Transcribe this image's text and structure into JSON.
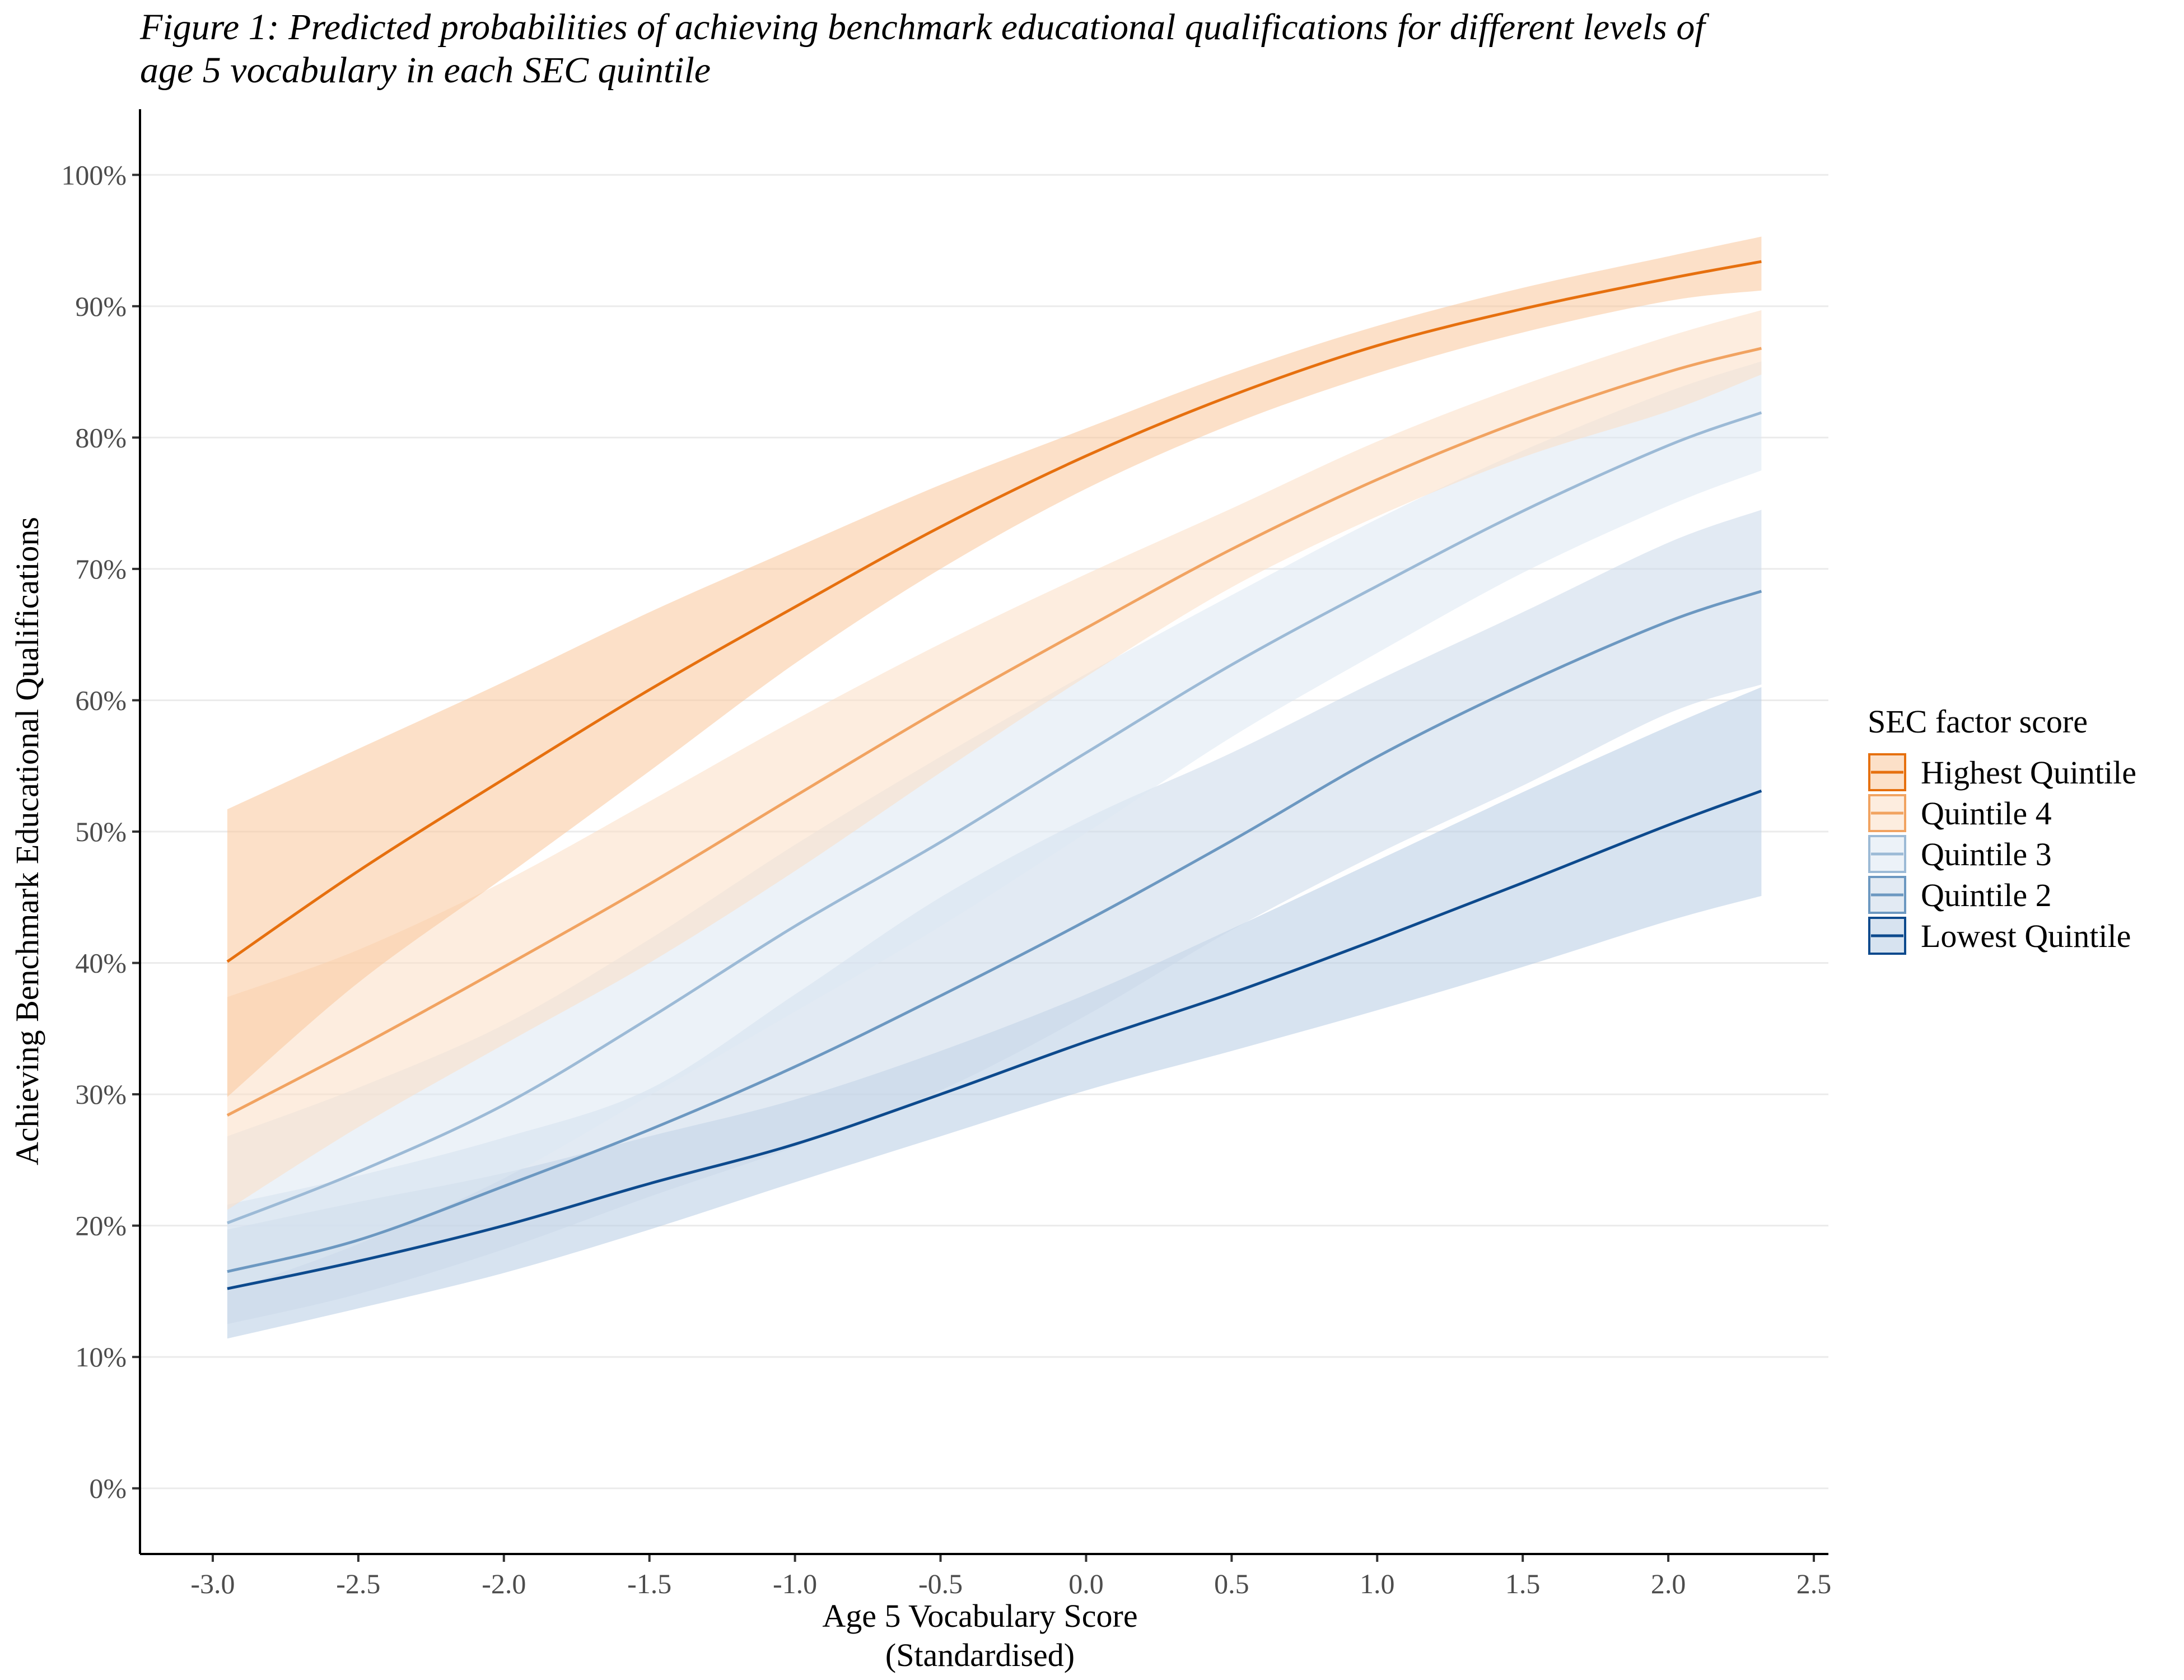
{
  "chart_data": {
    "type": "line",
    "title_line1": "Figure 1: Predicted probabilities of achieving benchmark educational qualifications for different levels of",
    "title_line2": " age 5 vocabulary in each SEC quintile",
    "xlabel_line1": "Age 5 Vocabulary Score",
    "xlabel_line2": "(Standardised)",
    "ylabel": "Achieving Benchmark Educational Qualifications",
    "xlim": [
      -3.25,
      2.55
    ],
    "ylim": [
      -0.05,
      1.05
    ],
    "x_ticks": [
      -3.0,
      -2.5,
      -2.0,
      -1.5,
      -1.0,
      -0.5,
      0.0,
      0.5,
      1.0,
      1.5,
      2.0,
      2.5
    ],
    "x_tick_labels": [
      "-3.0",
      "-2.5",
      "-2.0",
      "-1.5",
      "-1.0",
      "-0.5",
      "0.0",
      "0.5",
      "1.0",
      "1.5",
      "2.0",
      "2.5"
    ],
    "y_ticks": [
      0,
      0.1,
      0.2,
      0.3,
      0.4,
      0.5,
      0.6,
      0.7,
      0.8,
      0.9,
      1.0
    ],
    "y_tick_labels": [
      "0%",
      "10%",
      "20%",
      "30%",
      "40%",
      "50%",
      "60%",
      "70%",
      "80%",
      "90%",
      "100%"
    ],
    "grid": true,
    "legend": {
      "title": "SEC factor score",
      "placement": "right"
    },
    "x": [
      -2.95,
      -2.5,
      -2.0,
      -1.5,
      -1.0,
      -0.5,
      0.0,
      0.5,
      1.0,
      1.5,
      2.0,
      2.32
    ],
    "series": [
      {
        "name": "Highest Quintile",
        "color": "#E6700F",
        "fill": "#F9C79A",
        "values": [
          0.401,
          0.47,
          0.54,
          0.608,
          0.671,
          0.732,
          0.786,
          0.832,
          0.87,
          0.898,
          0.921,
          0.934
        ],
        "lower": [
          0.298,
          0.385,
          0.465,
          0.546,
          0.628,
          0.7,
          0.761,
          0.81,
          0.849,
          0.88,
          0.904,
          0.912
        ],
        "upper": [
          0.517,
          0.563,
          0.614,
          0.667,
          0.716,
          0.764,
          0.807,
          0.849,
          0.885,
          0.914,
          0.938,
          0.953
        ]
      },
      {
        "name": "Quintile 4",
        "color": "#F1A361",
        "fill": "#FBDEC5",
        "values": [
          0.284,
          0.336,
          0.397,
          0.46,
          0.527,
          0.593,
          0.655,
          0.715,
          0.768,
          0.813,
          0.85,
          0.868
        ],
        "lower": [
          0.212,
          0.275,
          0.338,
          0.4,
          0.47,
          0.545,
          0.618,
          0.686,
          0.74,
          0.785,
          0.82,
          0.848
        ],
        "upper": [
          0.374,
          0.41,
          0.462,
          0.523,
          0.585,
          0.643,
          0.696,
          0.746,
          0.797,
          0.84,
          0.877,
          0.897
        ]
      },
      {
        "name": "Quintile 3",
        "color": "#9CBAD6",
        "fill": "#DDE7F2",
        "values": [
          0.202,
          0.241,
          0.292,
          0.358,
          0.428,
          0.492,
          0.56,
          0.627,
          0.687,
          0.744,
          0.794,
          0.819
        ],
        "lower": [
          0.15,
          0.186,
          0.236,
          0.299,
          0.363,
          0.428,
          0.499,
          0.572,
          0.636,
          0.697,
          0.748,
          0.775
        ],
        "upper": [
          0.268,
          0.305,
          0.353,
          0.418,
          0.49,
          0.557,
          0.62,
          0.68,
          0.738,
          0.79,
          0.835,
          0.858
        ]
      },
      {
        "name": "Quintile 2",
        "color": "#6C98C1",
        "fill": "#CBD9E9",
        "values": [
          0.165,
          0.189,
          0.23,
          0.273,
          0.321,
          0.375,
          0.432,
          0.493,
          0.557,
          0.612,
          0.66,
          0.683
        ],
        "lower": [
          0.125,
          0.148,
          0.182,
          0.222,
          0.26,
          0.303,
          0.36,
          0.425,
          0.483,
          0.535,
          0.59,
          0.612
        ],
        "upper": [
          0.216,
          0.238,
          0.267,
          0.304,
          0.376,
          0.45,
          0.51,
          0.56,
          0.615,
          0.667,
          0.72,
          0.745
        ]
      },
      {
        "name": "Lowest Quintile",
        "color": "#0D4A8D",
        "fill": "#B7CCE3",
        "values": [
          0.152,
          0.173,
          0.2,
          0.232,
          0.262,
          0.3,
          0.34,
          0.377,
          0.418,
          0.461,
          0.505,
          0.531
        ],
        "lower": [
          0.114,
          0.137,
          0.164,
          0.197,
          0.233,
          0.268,
          0.303,
          0.333,
          0.364,
          0.397,
          0.432,
          0.451
        ],
        "upper": [
          0.197,
          0.218,
          0.24,
          0.268,
          0.296,
          0.333,
          0.376,
          0.426,
          0.478,
          0.53,
          0.58,
          0.61
        ]
      }
    ]
  }
}
